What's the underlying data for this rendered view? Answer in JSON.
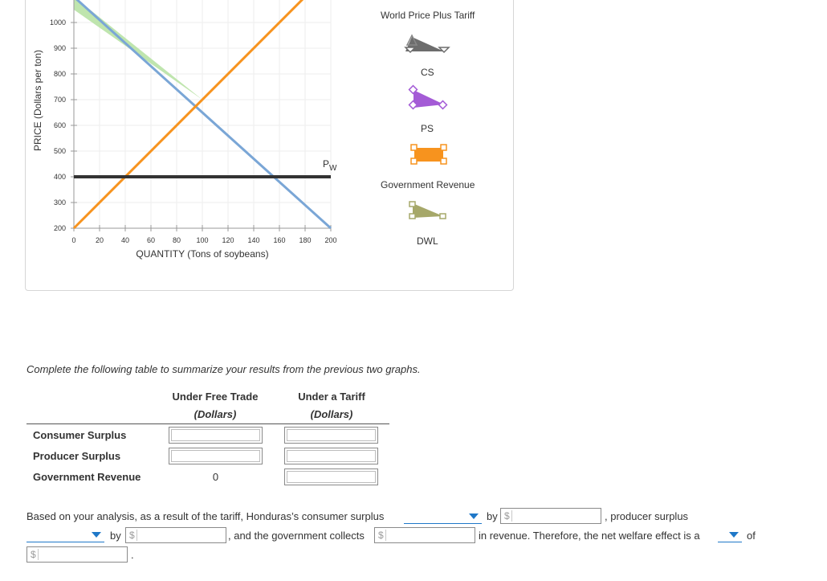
{
  "chart_data": {
    "type": "line",
    "ylabel": "PRICE (Dollars per ton)",
    "xlabel": "QUANTITY (Tons of soybeans)",
    "x_ticks": [
      0,
      20,
      40,
      60,
      80,
      100,
      120,
      140,
      160,
      180,
      200
    ],
    "y_ticks": [
      200,
      300,
      400,
      500,
      600,
      700,
      800,
      900,
      1000
    ],
    "xlim": [
      0,
      200
    ],
    "ylim": [
      200,
      1000
    ],
    "series": [
      {
        "kind": "demand",
        "color": "#7aa6d6",
        "points": [
          [
            0,
            1100
          ],
          [
            200,
            200
          ]
        ]
      },
      {
        "kind": "supply",
        "color": "#f7931e",
        "points": [
          [
            0,
            200
          ],
          [
            180,
            1100
          ]
        ]
      },
      {
        "name": "Pw",
        "kind": "price",
        "color": "#333333",
        "points": [
          [
            0,
            400
          ],
          [
            200,
            400
          ]
        ]
      }
    ],
    "shaded_cs": {
      "color": "#b4e0a0",
      "polygon": [
        [
          0,
          1100
        ],
        [
          0,
          1050
        ],
        [
          100,
          700
        ]
      ]
    },
    "price_label_main": "P",
    "price_label_sub": "W"
  },
  "legend": {
    "title": "World Price Plus Tariff",
    "items": [
      {
        "label": "CS",
        "color": "#6d6d6d",
        "icon": "cs-triangle-icon"
      },
      {
        "label": "PS",
        "color": "#a45bd6",
        "icon": "ps-triangle-icon"
      },
      {
        "label": "Government Revenue",
        "color": "#f7931e",
        "icon": "government-revenue-rectangle-icon"
      },
      {
        "label": "DWL",
        "color": "#a6a86a",
        "icon": "dwl-triangle-icon"
      }
    ]
  },
  "instructions": "Complete the following table to summarize your results from the previous two graphs.",
  "table": {
    "col1_header": "Under Free Trade",
    "col1_unit": "(Dollars)",
    "col2_header": "Under a Tariff",
    "col2_unit": "(Dollars)",
    "rows": [
      {
        "label": "Consumer Surplus",
        "free_trade": "",
        "tariff": ""
      },
      {
        "label": "Producer Surplus",
        "free_trade": "",
        "tariff": ""
      },
      {
        "label": "Government Revenue",
        "free_trade": "0",
        "tariff": ""
      }
    ]
  },
  "analysis": {
    "part1": "Based on your analysis, as a result of the tariff, Honduras’s consumer surplus",
    "by1": "by",
    "part2": ", producer surplus",
    "by2": "by",
    "part3": ", and the government collects",
    "part4": "in revenue. Therefore, the net welfare effect is a",
    "of": "of",
    "end": ".",
    "currency": "$"
  }
}
